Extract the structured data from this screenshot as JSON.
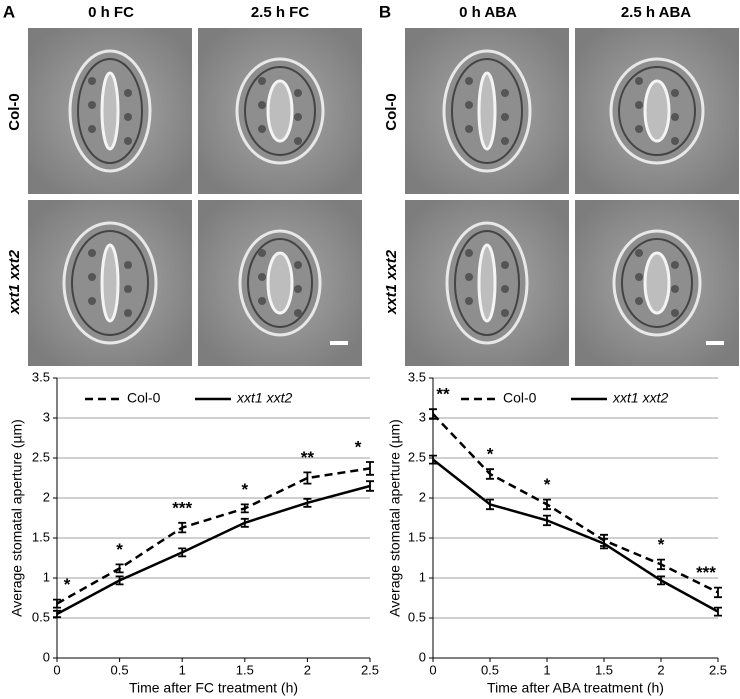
{
  "panels": [
    {
      "label": "A",
      "columns": [
        "0 h FC",
        "2.5 h FC"
      ],
      "rows": [
        "Col-0",
        "xxt1 xxt2"
      ]
    },
    {
      "label": "B",
      "columns": [
        "0 h ABA",
        "2.5 h ABA"
      ],
      "rows": [
        "Col-0",
        "xxt1 xxt2"
      ]
    }
  ],
  "chart_data": [
    {
      "type": "line",
      "xlabel": "Time after FC treatment (h)",
      "ylabel": "Average stomatal aperture (µm)",
      "x": [
        0,
        0.5,
        1,
        1.5,
        2,
        2.5
      ],
      "series": [
        {
          "name": "Col-0",
          "color": "#000000",
          "linestyle": "dashed",
          "values": [
            0.68,
            1.12,
            1.63,
            1.87,
            2.25,
            2.37
          ],
          "errors": [
            0.05,
            0.05,
            0.06,
            0.05,
            0.07,
            0.08
          ]
        },
        {
          "name": "xxt1 xxt2",
          "color": "#000000",
          "linestyle": "solid",
          "values": [
            0.55,
            0.97,
            1.32,
            1.69,
            1.94,
            2.15
          ],
          "errors": [
            0.04,
            0.05,
            0.05,
            0.05,
            0.05,
            0.06
          ]
        }
      ],
      "annotations": [
        {
          "x": 0,
          "text": "*"
        },
        {
          "x": 0.5,
          "text": "*"
        },
        {
          "x": 1,
          "text": "***"
        },
        {
          "x": 1.5,
          "text": "*"
        },
        {
          "x": 2,
          "text": "**"
        },
        {
          "x": 2.5,
          "text": "*"
        }
      ],
      "xlim": [
        0,
        2.5
      ],
      "xticks": [
        0,
        0.5,
        1,
        1.5,
        2,
        2.5
      ],
      "ylim": [
        0,
        3.5
      ],
      "yticks": [
        0,
        0.5,
        1,
        1.5,
        2,
        2.5,
        3,
        3.5
      ],
      "grid": true,
      "legend": "top"
    },
    {
      "type": "line",
      "xlabel": "Time after ABA treatment (h)",
      "ylabel": "Average stomatal aperture (µm)",
      "x": [
        0,
        0.5,
        1,
        1.5,
        2,
        2.5
      ],
      "series": [
        {
          "name": "Col-0",
          "color": "#000000",
          "linestyle": "dashed",
          "values": [
            3.05,
            2.3,
            1.92,
            1.47,
            1.17,
            0.82
          ],
          "errors": [
            0.06,
            0.06,
            0.06,
            0.07,
            0.06,
            0.06
          ]
        },
        {
          "name": "xxt1 xxt2",
          "color": "#000000",
          "linestyle": "solid",
          "values": [
            2.48,
            1.92,
            1.72,
            1.43,
            0.97,
            0.58
          ],
          "errors": [
            0.05,
            0.06,
            0.06,
            0.06,
            0.05,
            0.05
          ]
        }
      ],
      "annotations": [
        {
          "x": 0,
          "text": "**"
        },
        {
          "x": 0.5,
          "text": "*"
        },
        {
          "x": 1,
          "text": "*"
        },
        {
          "x": 2,
          "text": "*"
        },
        {
          "x": 2.5,
          "text": "***"
        }
      ],
      "xlim": [
        0,
        2.5
      ],
      "xticks": [
        0,
        0.5,
        1,
        1.5,
        2,
        2.5
      ],
      "ylim": [
        0,
        3.5
      ],
      "yticks": [
        0,
        0.5,
        1,
        1.5,
        2,
        2.5,
        3,
        3.5
      ],
      "grid": true,
      "legend": "top"
    }
  ]
}
